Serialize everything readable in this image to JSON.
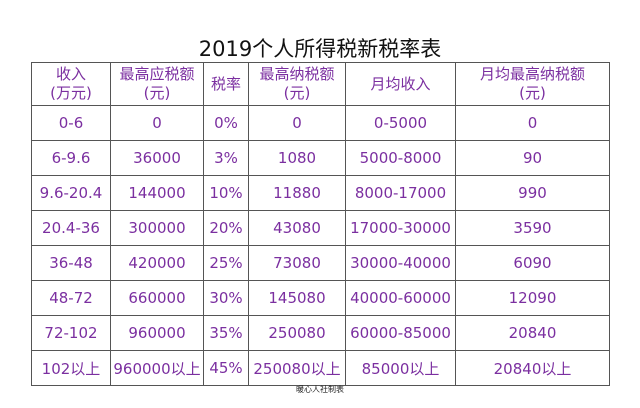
{
  "title": "2019个人所得税新税率表",
  "table": {
    "headers": [
      [
        "收入",
        "(万元)"
      ],
      [
        "最高应税额",
        "(元)"
      ],
      [
        "税率",
        ""
      ],
      [
        "最高纳税额",
        "(元)"
      ],
      [
        "月均收入",
        ""
      ],
      [
        "月均最高纳税额",
        "(元)"
      ]
    ],
    "rows": [
      [
        "0-6",
        "0",
        "0%",
        "0",
        "0-5000",
        "0"
      ],
      [
        "6-9.6",
        "36000",
        "3%",
        "1080",
        "5000-8000",
        "90"
      ],
      [
        "9.6-20.4",
        "144000",
        "10%",
        "11880",
        "8000-17000",
        "990"
      ],
      [
        "20.4-36",
        "300000",
        "20%",
        "43080",
        "17000-30000",
        "3590"
      ],
      [
        "36-48",
        "420000",
        "25%",
        "73080",
        "30000-40000",
        "6090"
      ],
      [
        "48-72",
        "660000",
        "30%",
        "145080",
        "40000-60000",
        "12090"
      ],
      [
        "72-102",
        "960000",
        "35%",
        "250080",
        "60000-85000",
        "20840"
      ],
      [
        "102以上",
        "960000以上",
        "45%",
        "250080以上",
        "85000以上",
        "20840以上"
      ]
    ]
  },
  "footer": "暖心人社制表",
  "colors": {
    "text": "#7b2fa0",
    "border": "#555555",
    "title": "#111111"
  }
}
